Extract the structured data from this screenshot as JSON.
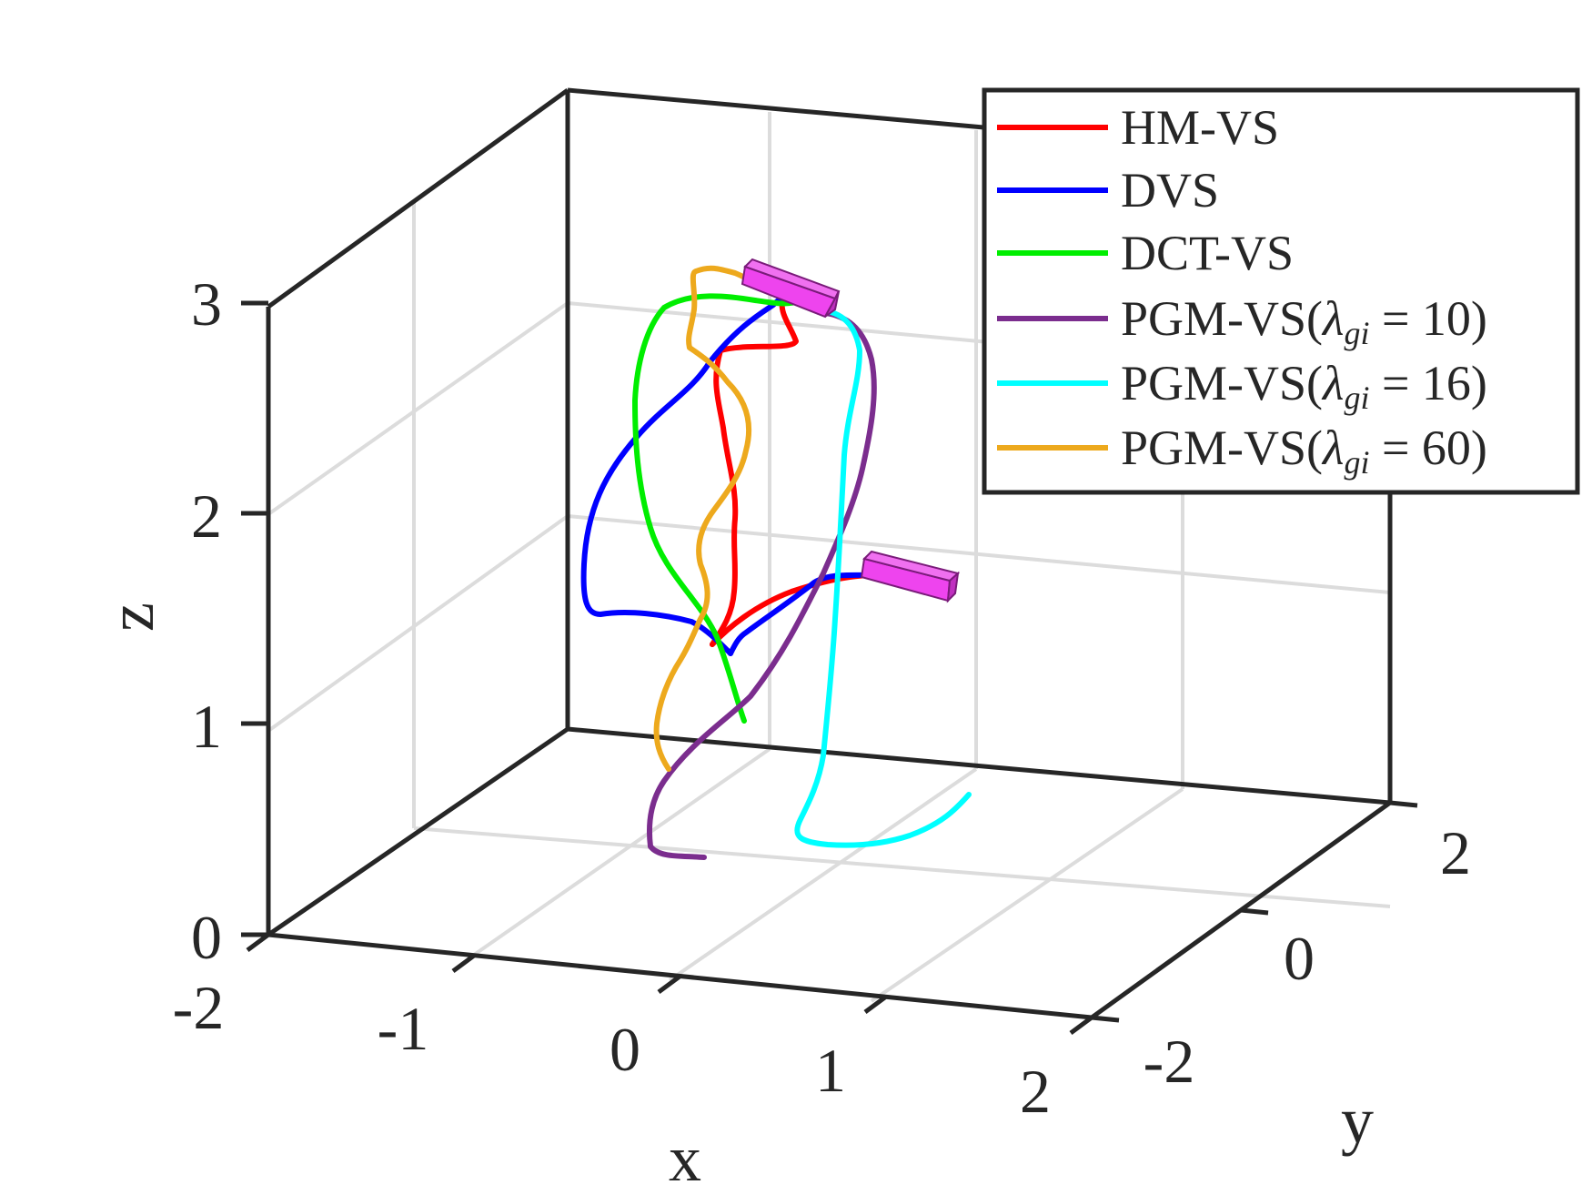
{
  "chart_data": {
    "type": "line3d",
    "xlabel": "x",
    "ylabel": "y",
    "zlabel": "z",
    "xlim": [
      -2,
      2
    ],
    "ylim": [
      -2,
      2
    ],
    "zlim": [
      0,
      3
    ],
    "x_ticks": [
      "-2",
      "-1",
      "0",
      "1",
      "2"
    ],
    "y_ticks": [
      "-2",
      "0",
      "2"
    ],
    "z_ticks": [
      "0",
      "1",
      "2",
      "3"
    ],
    "grid": true,
    "legend_position": "top-right",
    "colors": {
      "HM-VS": "#ff0000",
      "DVS": "#0000ff",
      "DCT-VS": "#00ee00",
      "PGM-VS10": "#7b2d8e",
      "PGM-VS16": "#00ffff",
      "PGM-VS60": "#eda91d",
      "camera": "#ee44ee"
    },
    "legend": {
      "hm": "HM-VS",
      "dvs": "DVS",
      "dct": "DCT-VS",
      "pgm_prefix": "PGM-VS(",
      "lambda": "λ",
      "sub": "gi",
      "eq": " = ",
      "pgm10_val": "10",
      "pgm16_val": "16",
      "pgm60_val": "60",
      "close": ")"
    },
    "cameras": [
      {
        "name": "initial-camera",
        "x": 0.2,
        "y": 1.2,
        "z": 3.0
      },
      {
        "name": "final-camera",
        "x": 1.2,
        "y": 0.8,
        "z": 1.7
      }
    ],
    "series": [
      {
        "name": "HM-VS",
        "points": [
          [
            0.0,
            0.2,
            1.45
          ],
          [
            0.0,
            0.25,
            1.8
          ],
          [
            0.05,
            0.3,
            2.2
          ],
          [
            -0.05,
            0.4,
            2.6
          ],
          [
            0.0,
            0.5,
            2.8
          ],
          [
            0.2,
            0.8,
            2.85
          ],
          [
            0.2,
            1.0,
            3.0
          ],
          [
            0.2,
            1.2,
            3.0
          ]
        ]
      },
      {
        "name": "DVS",
        "points": [
          [
            0.1,
            0.2,
            1.4
          ],
          [
            -0.3,
            0.1,
            1.55
          ],
          [
            -0.7,
            0.1,
            1.65
          ],
          [
            -0.6,
            0.3,
            2.3
          ],
          [
            -0.3,
            0.5,
            2.7
          ],
          [
            0.0,
            0.8,
            3.0
          ],
          [
            0.2,
            1.2,
            3.0
          ]
        ]
      },
      {
        "name": "DCT-VS",
        "points": [
          [
            0.3,
            0.3,
            1.0
          ],
          [
            0.1,
            0.3,
            1.6
          ],
          [
            -0.2,
            0.3,
            2.1
          ],
          [
            -0.4,
            0.4,
            2.7
          ],
          [
            -0.2,
            0.7,
            3.1
          ],
          [
            0.1,
            1.0,
            3.05
          ],
          [
            0.2,
            1.2,
            3.0
          ]
        ]
      },
      {
        "name": "PGM-VS(λgi = 10)",
        "points": [
          [
            0.0,
            -0.1,
            0.2
          ],
          [
            -0.3,
            0.0,
            0.3
          ],
          [
            -0.2,
            0.2,
            0.7
          ],
          [
            0.2,
            0.2,
            1.1
          ],
          [
            0.6,
            0.4,
            1.8
          ],
          [
            0.8,
            0.7,
            2.4
          ],
          [
            0.7,
            1.0,
            2.9
          ],
          [
            0.2,
            1.2,
            3.0
          ]
        ]
      },
      {
        "name": "PGM-VS(λgi = 16)",
        "points": [
          [
            1.7,
            0.7,
            0.3
          ],
          [
            1.3,
            0.3,
            0.2
          ],
          [
            0.8,
            0.4,
            0.25
          ],
          [
            0.7,
            0.6,
            0.7
          ],
          [
            0.7,
            0.8,
            1.8
          ],
          [
            0.7,
            0.9,
            2.6
          ],
          [
            0.5,
            1.0,
            2.95
          ],
          [
            0.2,
            1.2,
            3.0
          ]
        ]
      },
      {
        "name": "PGM-VS(λgi = 60)",
        "points": [
          [
            -0.1,
            0.2,
            0.8
          ],
          [
            -0.2,
            0.2,
            1.2
          ],
          [
            0.0,
            0.3,
            1.7
          ],
          [
            0.0,
            0.4,
            2.2
          ],
          [
            0.1,
            0.6,
            2.8
          ],
          [
            -0.1,
            0.9,
            3.2
          ],
          [
            0.2,
            1.2,
            3.0
          ]
        ]
      }
    ]
  }
}
